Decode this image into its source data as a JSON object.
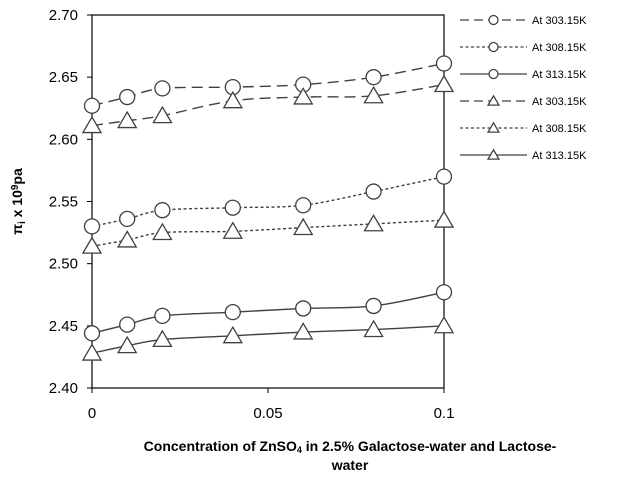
{
  "chart_data": {
    "type": "line",
    "xlabel_lines": [
      [
        {
          "t": "Concentration of ZnSO"
        },
        {
          "t": "4",
          "sub": true
        },
        {
          "t": " in 2.5% Galactose-water and Lactose-"
        }
      ],
      [
        {
          "t": "water"
        }
      ]
    ],
    "ylabel_parts": [
      {
        "t": "π"
      },
      {
        "t": "i",
        "sub": true
      },
      {
        "t": " x 10"
      },
      {
        "t": "9",
        "sup": true
      },
      {
        "t": "pa"
      }
    ],
    "xlim": [
      0,
      0.1
    ],
    "ylim": [
      2.4,
      2.7
    ],
    "xticks": [
      {
        "value": 0,
        "label": "0"
      },
      {
        "value": 0.05,
        "label": "0.05"
      },
      {
        "value": 0.1,
        "label": "0.1"
      }
    ],
    "yticks": [
      {
        "value": 2.4,
        "label": "2.40"
      },
      {
        "value": 2.45,
        "label": "2.45"
      },
      {
        "value": 2.5,
        "label": "2.50"
      },
      {
        "value": 2.55,
        "label": "2.55"
      },
      {
        "value": 2.6,
        "label": "2.60"
      },
      {
        "value": 2.65,
        "label": "2.65"
      },
      {
        "value": 2.7,
        "label": "2.70"
      }
    ],
    "grid": false,
    "legend_position": "right",
    "x": [
      0,
      0.01,
      0.02,
      0.04,
      0.06,
      0.08,
      0.1
    ],
    "series": [
      {
        "name": "At 303.15K",
        "marker": "circle",
        "dash": "long-dash",
        "values": [
          2.627,
          2.634,
          2.641,
          2.642,
          2.644,
          2.65,
          2.661
        ]
      },
      {
        "name": "At 308.15K",
        "marker": "circle",
        "dash": "dotted",
        "values": [
          2.53,
          2.536,
          2.543,
          2.545,
          2.547,
          2.558,
          2.57
        ]
      },
      {
        "name": "At 313.15K",
        "marker": "circle",
        "dash": "solid",
        "values": [
          2.444,
          2.451,
          2.458,
          2.461,
          2.464,
          2.466,
          2.477
        ]
      },
      {
        "name": "At 303.15K",
        "marker": "triangle",
        "dash": "long-dash",
        "values": [
          2.611,
          2.615,
          2.619,
          2.631,
          2.634,
          2.635,
          2.644
        ]
      },
      {
        "name": "At 308.15K",
        "marker": "triangle",
        "dash": "dotted",
        "values": [
          2.514,
          2.519,
          2.525,
          2.526,
          2.529,
          2.532,
          2.535
        ]
      },
      {
        "name": "At 313.15K",
        "marker": "triangle",
        "dash": "solid",
        "values": [
          2.428,
          2.434,
          2.439,
          2.442,
          2.445,
          2.447,
          2.45
        ]
      }
    ],
    "colors": {
      "line": "#404040",
      "axis": "#000000",
      "background": "#ffffff"
    }
  }
}
